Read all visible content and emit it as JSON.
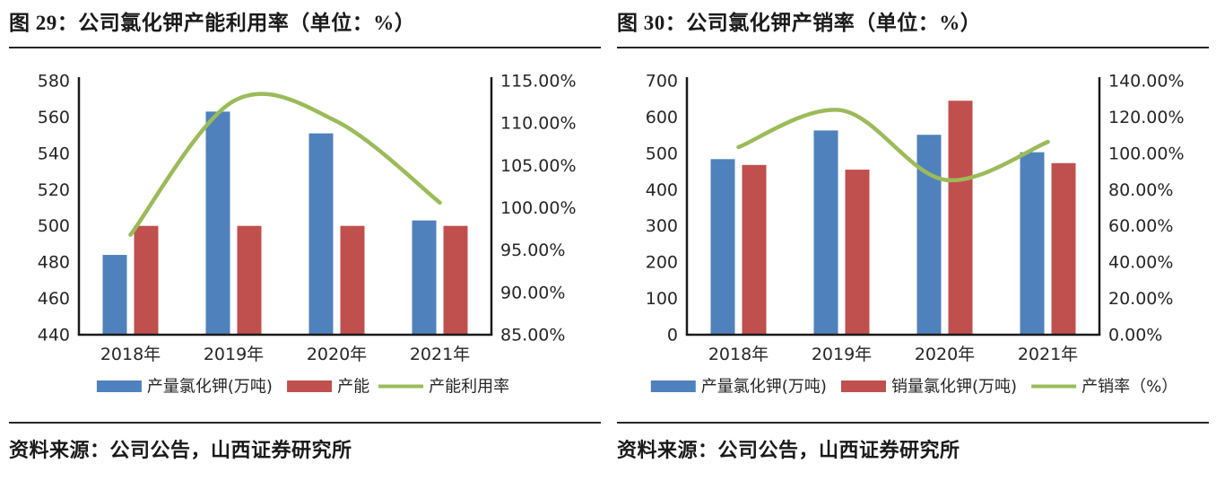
{
  "figures": [
    {
      "title": "图 29：公司氯化钾产能利用率（单位：%）",
      "source": "资料来源：公司公告，山西证券研究所"
    },
    {
      "title": "图 30：公司氯化钾产销率（单位：%）",
      "source": "资料来源：公司公告，山西证券研究所"
    }
  ],
  "colors": {
    "bar_blue": "#4F81BD",
    "bar_red": "#C0504D",
    "line_green": "#9BBB59",
    "axis_line": "#1A1A1A",
    "text": "#262626"
  },
  "chart_data": [
    {
      "type": "bar",
      "subtype": "combo-bar-line-dual-axis",
      "title": "图 29：公司氯化钾产能利用率（单位：%）",
      "categories": [
        "2018年",
        "2019年",
        "2020年",
        "2021年"
      ],
      "series": [
        {
          "name": "产量氯化钾(万吨)",
          "kind": "bar",
          "axis": "left",
          "color": "#4F81BD",
          "values": [
            484,
            563,
            551,
            503
          ]
        },
        {
          "name": "产能",
          "kind": "bar",
          "axis": "left",
          "color": "#C0504D",
          "values": [
            500,
            500,
            500,
            500
          ]
        },
        {
          "name": "产能利用率",
          "kind": "line",
          "axis": "right",
          "color": "#9BBB59",
          "smooth": true,
          "values": [
            96.8,
            112.6,
            110.2,
            100.6
          ]
        }
      ],
      "left_axis": {
        "min": 440,
        "max": 580,
        "step": 20,
        "labels": [
          "580",
          "560",
          "540",
          "520",
          "500",
          "480",
          "460",
          "440"
        ]
      },
      "right_axis": {
        "min": 85,
        "max": 115,
        "step": 5,
        "labels": [
          "115.00%",
          "110.00%",
          "105.00%",
          "100.00%",
          "95.00%",
          "90.00%",
          "85.00%"
        ]
      },
      "grid": false,
      "legend_position": "bottom"
    },
    {
      "type": "bar",
      "subtype": "combo-bar-line-dual-axis",
      "title": "图 30：公司氯化钾产销率（单位：%）",
      "categories": [
        "2018年",
        "2019年",
        "2020年",
        "2021年"
      ],
      "series": [
        {
          "name": "产量氯化钾(万吨)",
          "kind": "bar",
          "axis": "left",
          "color": "#4F81BD",
          "values": [
            484,
            563,
            551,
            503
          ]
        },
        {
          "name": "销量氯化钾(万吨)",
          "kind": "bar",
          "axis": "left",
          "color": "#C0504D",
          "values": [
            468,
            455,
            645,
            473
          ]
        },
        {
          "name": "产销率（%）",
          "kind": "line",
          "axis": "right",
          "color": "#9BBB59",
          "smooth": true,
          "values": [
            103.4,
            123.7,
            85.4,
            106.3
          ]
        }
      ],
      "left_axis": {
        "min": 0,
        "max": 700,
        "step": 100,
        "labels": [
          "700",
          "600",
          "500",
          "400",
          "300",
          "200",
          "100",
          "0"
        ]
      },
      "right_axis": {
        "min": 0,
        "max": 140,
        "step": 20,
        "labels": [
          "140.00%",
          "120.00%",
          "100.00%",
          "80.00%",
          "60.00%",
          "40.00%",
          "20.00%",
          "0.00%"
        ]
      },
      "grid": false,
      "legend_position": "bottom"
    }
  ]
}
